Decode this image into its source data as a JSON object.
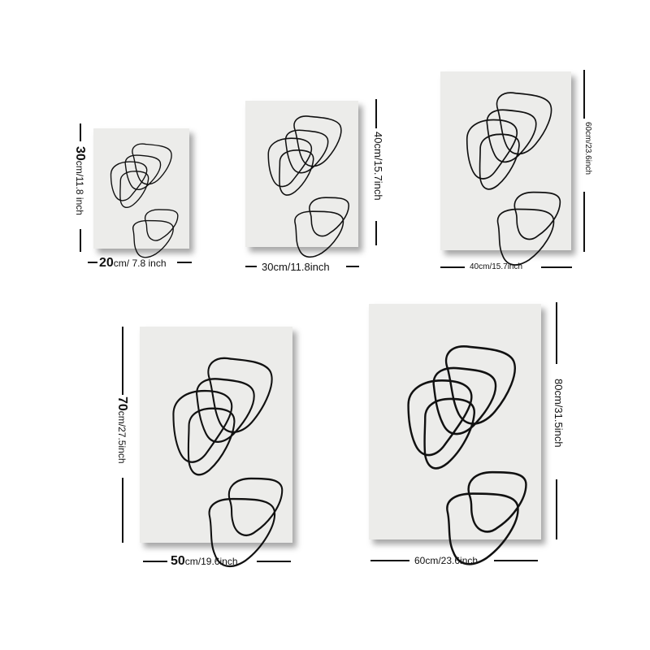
{
  "posters": [
    {
      "width_num": "20",
      "width_unit": "cm/ 7.8 inch",
      "height_num": "30",
      "height_unit": "cm/11.8 inch"
    },
    {
      "width_label": "30cm/11.8inch",
      "height_label": "40cm/15.7inch"
    },
    {
      "width_label": "40cm/15.7inch",
      "height_label": "60cm/23.6inch"
    },
    {
      "width_num": "50",
      "width_unit": "cm/19.6inch",
      "height_num": "70",
      "height_unit": "cm/27.5inch"
    },
    {
      "width_label": "60cm/23.6inch",
      "height_label": "80cm/31.5inch"
    }
  ]
}
